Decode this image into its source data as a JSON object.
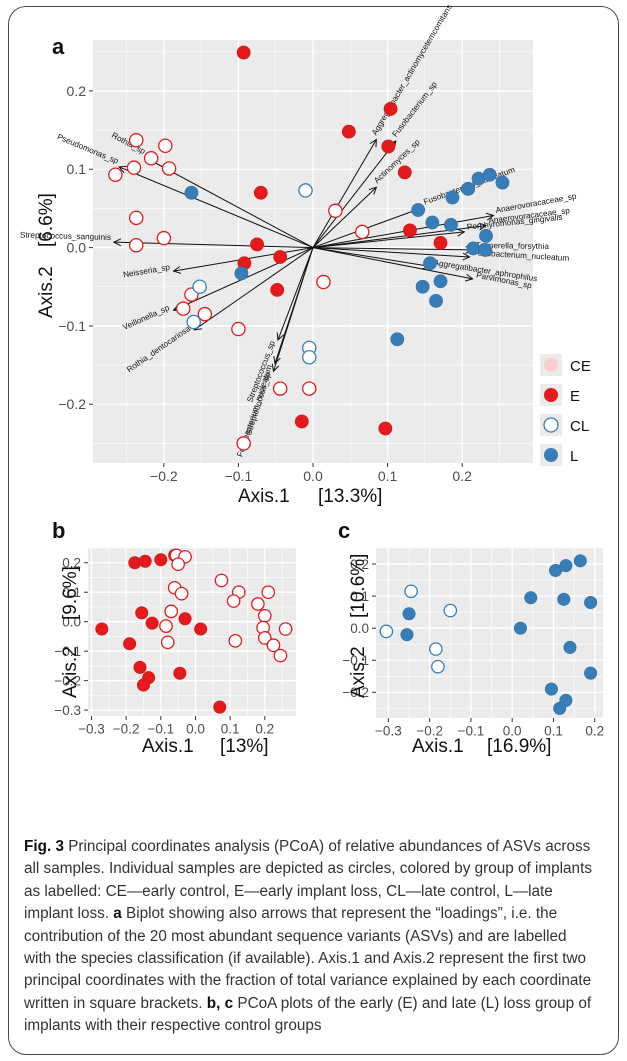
{
  "panels": {
    "a": {
      "label": "a",
      "xlabel": "Axis.1",
      "xvar": "[13.3%]",
      "ylabel": "Axis.2",
      "yvar": "[6.6%]",
      "xticks": [
        "−0.2",
        "−0.1",
        "0.0",
        "0.1",
        "0.2"
      ],
      "yticks": [
        "0.2",
        "0.1",
        "0.0",
        "−0.1",
        "−0.2"
      ]
    },
    "b": {
      "label": "b",
      "xlabel": "Axis.1",
      "xvar": "[13%]",
      "ylabel": "Axis.2",
      "yvar": "[9.6%]",
      "xticks": [
        "−0.3",
        "−0.2",
        "−0.1",
        "0.0",
        "0.1",
        "0.2"
      ],
      "yticks": [
        "0.2",
        "0.1",
        "0.0",
        "−0.1",
        "−0.2",
        "−0.3"
      ]
    },
    "c": {
      "label": "c",
      "xlabel": "Axis.1",
      "xvar": "[16.9%]",
      "ylabel": "Axis.2",
      "yvar": "[10.6%]",
      "xticks": [
        "−0.3",
        "−0.2",
        "−0.1",
        "0.0",
        "0.1",
        "0.2"
      ],
      "yticks": [
        "0.2",
        "0.1",
        "0.0",
        "−0.1",
        "−0.2"
      ]
    }
  },
  "legend": {
    "items": [
      {
        "label": "CE",
        "group": "CE"
      },
      {
        "label": "E",
        "group": "E"
      },
      {
        "label": "CL",
        "group": "CL"
      },
      {
        "label": "L",
        "group": "L"
      }
    ]
  },
  "colors": {
    "early_red": "#e41a1c",
    "early_control_fill": "#f8d0d0",
    "late_blue": "#377eb8",
    "panel_bg": "#ebebeb",
    "grid": "#ffffff"
  },
  "caption": {
    "fig_label": "Fig. 3",
    "text_1": "  Principal coordinates analysis (PCoA) of relative abundances of ASVs across all samples. Individual samples are depicted as circles, colored by group of implants as labelled: CE—early control, E—early implant loss, CL—late control, L—late implant loss. ",
    "a_label": "a",
    "text_2": " Biplot showing also arrows that represent the “loadings”, i.e. the contribution of the 20 most abundant sequence variants (ASVs) and are labelled with the species classification (if available). Axis.1 and Axis.2 represent the first two principal coordinates with the fraction of total variance explained by each coordinate written in square brackets. ",
    "bc_label": "b, c",
    "text_3": " PCoA plots of the early (E) and late (L) loss group of implants with their respective control groups"
  },
  "chart_data": [
    {
      "panel": "a",
      "type": "scatter",
      "xlabel": "Axis.1 [13.3%]",
      "ylabel": "Axis.2 [6.6%]",
      "xlim": [
        -0.295,
        0.295
      ],
      "ylim": [
        -0.275,
        0.265
      ],
      "series": [
        {
          "name": "CE",
          "marker": "open-red",
          "points": [
            [
              -0.237,
              0.137
            ],
            [
              -0.217,
              0.114
            ],
            [
              -0.193,
              0.101
            ],
            [
              -0.265,
              0.093
            ],
            [
              -0.24,
              0.102
            ],
            [
              -0.198,
              0.13
            ],
            [
              -0.237,
              0.038
            ],
            [
              -0.2,
              0.012
            ],
            [
              -0.237,
              0.003
            ],
            [
              -0.145,
              -0.085
            ],
            [
              -0.163,
              -0.06
            ],
            [
              -0.174,
              -0.078
            ],
            [
              -0.1,
              -0.104
            ],
            [
              0.014,
              -0.044
            ],
            [
              0.066,
              0.02
            ],
            [
              -0.093,
              -0.25
            ],
            [
              0.03,
              0.047
            ],
            [
              -0.044,
              -0.18
            ],
            [
              -0.005,
              -0.18
            ]
          ]
        },
        {
          "name": "E",
          "marker": "filled-red",
          "points": [
            [
              -0.093,
              0.249
            ],
            [
              0.048,
              0.148
            ],
            [
              0.104,
              0.177
            ],
            [
              0.101,
              0.129
            ],
            [
              0.123,
              0.096
            ],
            [
              -0.07,
              0.07
            ],
            [
              -0.075,
              0.004
            ],
            [
              -0.092,
              -0.02
            ],
            [
              -0.044,
              -0.012
            ],
            [
              -0.048,
              -0.054
            ],
            [
              0.13,
              0.022
            ],
            [
              0.171,
              0.006
            ],
            [
              0.097,
              -0.231
            ],
            [
              -0.015,
              -0.222
            ]
          ]
        },
        {
          "name": "CL",
          "marker": "open-blue",
          "points": [
            [
              -0.01,
              0.073
            ],
            [
              -0.152,
              -0.05
            ],
            [
              -0.16,
              -0.095
            ],
            [
              -0.005,
              -0.128
            ],
            [
              -0.005,
              -0.14
            ]
          ]
        },
        {
          "name": "L",
          "marker": "filled-blue",
          "points": [
            [
              -0.163,
              0.07
            ],
            [
              0.222,
              0.088
            ],
            [
              0.237,
              0.093
            ],
            [
              0.254,
              0.083
            ],
            [
              0.208,
              0.075
            ],
            [
              0.187,
              0.064
            ],
            [
              0.141,
              0.048
            ],
            [
              0.16,
              0.032
            ],
            [
              0.185,
              0.029
            ],
            [
              0.232,
              0.015
            ],
            [
              0.215,
              -0.001
            ],
            [
              0.231,
              -0.003
            ],
            [
              0.157,
              -0.02
            ],
            [
              0.147,
              -0.05
            ],
            [
              0.171,
              -0.043
            ],
            [
              0.165,
              -0.068
            ],
            [
              -0.096,
              -0.033
            ],
            [
              0.113,
              -0.117
            ]
          ]
        }
      ],
      "loadings": [
        {
          "label": "Aggregatibacter_actinomycetemcomitans",
          "end": [
            0.085,
            0.138
          ]
        },
        {
          "label": "Fusobacterium_sp",
          "end": [
            0.111,
            0.136
          ]
        },
        {
          "label": "Actinomyces_sp",
          "end": [
            0.085,
            0.077
          ]
        },
        {
          "label": "Fusobacterium_nucleatum",
          "end": [
            0.147,
            0.051
          ]
        },
        {
          "label": "Anaerovoracaceae_sp",
          "end": [
            0.242,
            0.041
          ]
        },
        {
          "label": "Anaerovoracaceae_sp",
          "end": [
            0.232,
            0.028
          ]
        },
        {
          "label": "Porphyromonas_gingivalis",
          "end": [
            0.203,
            0.02
          ]
        },
        {
          "label": "Tannerella_forsythia",
          "end": [
            0.214,
            -0.003
          ]
        },
        {
          "label": "Fusobacterium_nucleatum",
          "end": [
            0.21,
            -0.012
          ]
        },
        {
          "label": "Aggregatibacter_aphrophilus",
          "end": [
            0.157,
            -0.024
          ]
        },
        {
          "label": "Parvimonas_sp",
          "end": [
            0.214,
            -0.04
          ]
        },
        {
          "label": "Rothia_sp",
          "end": [
            -0.225,
            0.115
          ]
        },
        {
          "label": "Pseudomonas_sp",
          "end": [
            -0.26,
            0.103
          ]
        },
        {
          "label": "Streptococcus_sanguinis",
          "end": [
            -0.267,
            0.007
          ]
        },
        {
          "label": "Neisseria_sp",
          "end": [
            -0.187,
            -0.03
          ]
        },
        {
          "label": "Veillonella_sp",
          "end": [
            -0.187,
            -0.08
          ]
        },
        {
          "label": "Rothia_dentocariosa",
          "end": [
            -0.159,
            -0.105
          ]
        },
        {
          "label": "Streptococcus_sp",
          "end": [
            -0.047,
            -0.118
          ]
        },
        {
          "label": "Fusobacterium_nucleatum",
          "end": [
            -0.051,
            -0.148
          ]
        },
        {
          "label": "Streptococcus_sp",
          "end": [
            -0.053,
            -0.158
          ]
        }
      ]
    },
    {
      "panel": "b",
      "type": "scatter",
      "xlabel": "Axis.1 [13%]",
      "ylabel": "Axis.2 [9.6%]",
      "xlim": [
        -0.31,
        0.29
      ],
      "ylim": [
        -0.32,
        0.25
      ],
      "series": [
        {
          "name": "E",
          "marker": "filled-red",
          "points": [
            [
              -0.175,
              0.2
            ],
            [
              -0.155,
              0.03
            ],
            [
              -0.145,
              0.205
            ],
            [
              -0.1,
              0.21
            ],
            [
              -0.06,
              0.225
            ],
            [
              -0.03,
              0.01
            ],
            [
              -0.27,
              -0.025
            ],
            [
              -0.19,
              -0.075
            ],
            [
              -0.125,
              -0.005
            ],
            [
              0.015,
              -0.025
            ],
            [
              -0.16,
              -0.155
            ],
            [
              -0.135,
              -0.19
            ],
            [
              -0.15,
              -0.215
            ],
            [
              -0.045,
              -0.175
            ],
            [
              0.07,
              -0.29
            ]
          ]
        },
        {
          "name": "CE",
          "marker": "open-red",
          "points": [
            [
              -0.055,
              0.225
            ],
            [
              -0.03,
              0.22
            ],
            [
              -0.05,
              0.195
            ],
            [
              -0.06,
              0.115
            ],
            [
              -0.04,
              0.095
            ],
            [
              -0.07,
              0.035
            ],
            [
              -0.085,
              -0.015
            ],
            [
              -0.08,
              -0.07
            ],
            [
              0.075,
              0.14
            ],
            [
              0.125,
              0.1
            ],
            [
              0.11,
              0.07
            ],
            [
              0.21,
              0.1
            ],
            [
              0.18,
              0.06
            ],
            [
              0.2,
              0.02
            ],
            [
              0.195,
              -0.02
            ],
            [
              0.26,
              -0.025
            ],
            [
              0.2,
              -0.055
            ],
            [
              0.225,
              -0.08
            ],
            [
              0.245,
              -0.115
            ],
            [
              0.115,
              -0.065
            ]
          ]
        }
      ]
    },
    {
      "panel": "c",
      "type": "scatter",
      "xlabel": "Axis.1 [16.9%]",
      "ylabel": "Axis.2 [10.6%]",
      "xlim": [
        -0.33,
        0.22
      ],
      "ylim": [
        -0.28,
        0.25
      ],
      "series": [
        {
          "name": "CL",
          "marker": "open-blue",
          "points": [
            [
              -0.245,
              0.115
            ],
            [
              -0.15,
              0.055
            ],
            [
              -0.305,
              -0.01
            ],
            [
              -0.185,
              -0.065
            ],
            [
              -0.18,
              -0.12
            ]
          ]
        },
        {
          "name": "L",
          "marker": "filled-blue",
          "points": [
            [
              -0.25,
              0.045
            ],
            [
              -0.255,
              -0.02
            ],
            [
              0.105,
              0.18
            ],
            [
              0.13,
              0.195
            ],
            [
              0.165,
              0.21
            ],
            [
              0.125,
              0.09
            ],
            [
              0.19,
              0.08
            ],
            [
              0.045,
              0.095
            ],
            [
              0.02,
              0.0
            ],
            [
              0.14,
              -0.06
            ],
            [
              0.19,
              -0.14
            ],
            [
              0.095,
              -0.19
            ],
            [
              0.13,
              -0.225
            ],
            [
              0.115,
              -0.25
            ]
          ]
        }
      ]
    }
  ]
}
